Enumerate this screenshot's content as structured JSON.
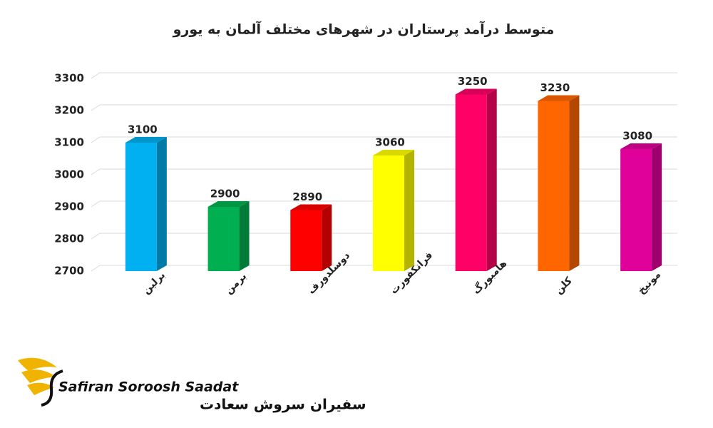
{
  "chart_data": {
    "type": "bar3d",
    "title": "متوسط درآمد پرستاران در شهرهای مختلف آلمان به یورو",
    "categories": [
      "برلین",
      "برمن",
      "دوسلدورف",
      "فرانکفورت",
      "هامبورگ",
      "کلن",
      "مونیخ"
    ],
    "series": [
      {
        "values": [
          3100,
          2900,
          2890,
          3060,
          3250,
          3230,
          3080
        ],
        "colors": [
          "#00b0f0",
          "#00b050",
          "#ff0000",
          "#ffff00",
          "#ff0066",
          "#ff6600",
          "#e0009a"
        ]
      }
    ],
    "ylim": [
      2700,
      3300
    ],
    "yticks": [
      2700,
      2800,
      2900,
      3000,
      3100,
      3200,
      3300
    ],
    "grid": true
  },
  "logo": {
    "latin": "Safiran Soroosh Saadat",
    "persian": "سفیران سروش سعادت"
  }
}
